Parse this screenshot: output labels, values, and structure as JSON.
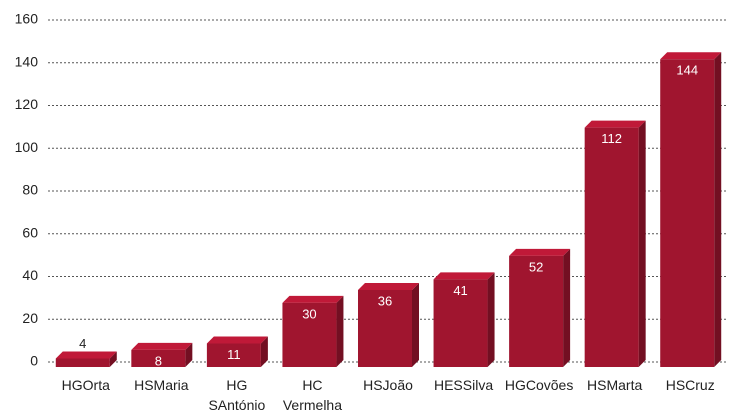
{
  "chart_data": {
    "type": "bar",
    "categories": [
      "HGOrta",
      "HSMaria",
      "HG\nSAntónio",
      "HC\nVermelha",
      "HSJoão",
      "HESSilva",
      "HGCovões",
      "HSMarta",
      "HSCruz"
    ],
    "values": [
      4,
      8,
      11,
      30,
      36,
      41,
      52,
      112,
      144
    ],
    "color": "#a0152f",
    "ylim": [
      0,
      160
    ],
    "yticks": [
      0,
      20,
      40,
      60,
      80,
      100,
      120,
      140,
      160
    ],
    "grid": true
  }
}
